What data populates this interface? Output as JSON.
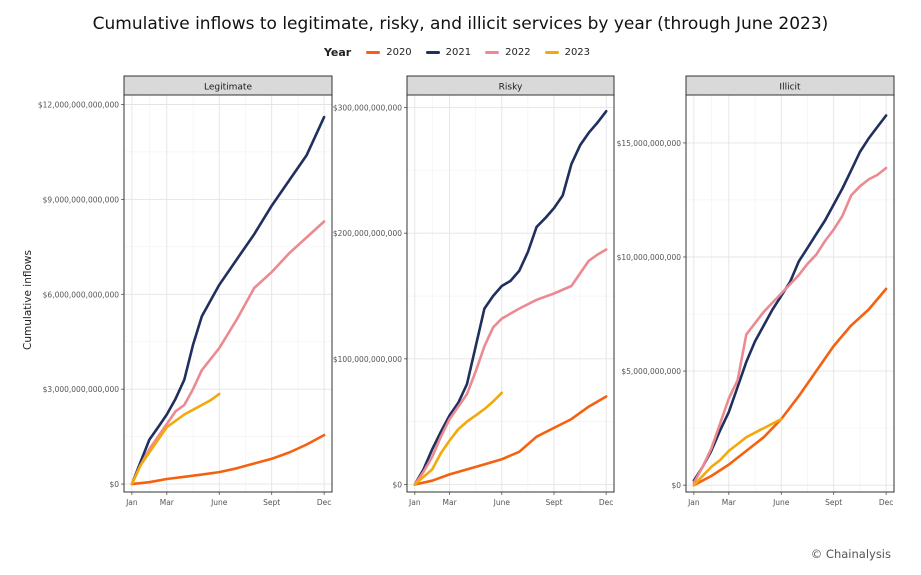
{
  "title": "Cumulative inflows to legitimate, risky, and illicit services by year (through June 2023)",
  "ylabel": "Cumulative inflows",
  "legend_title": "Year",
  "credit": "© Chainalysis",
  "colors": {
    "2020": "#f4620f",
    "2021": "#1f2f5e",
    "2022": "#ec8a92",
    "2023": "#f2a90b"
  },
  "chart_data": [
    {
      "type": "line",
      "panel": "Legitimate",
      "x_ticks": [
        "Jan",
        "Mar",
        "June",
        "Sept",
        "Dec"
      ],
      "x_tick_months": [
        0,
        2,
        5,
        8,
        11
      ],
      "y_ticks": [
        0,
        3000000000000,
        6000000000000,
        9000000000000,
        12000000000000
      ],
      "y_tick_labels": [
        "$0",
        "$3,000,000,000,000",
        "$6,000,000,000,000",
        "$9,000,000,000,000",
        "$12,000,000,000,000"
      ],
      "ylim": [
        -250000000000,
        12300000000000
      ],
      "xlim": [
        -0.45,
        11.45
      ],
      "series": [
        {
          "name": "2020",
          "x": [
            0,
            1,
            2,
            3,
            4,
            5,
            6,
            7,
            8,
            9,
            10,
            11
          ],
          "y": [
            0,
            60000000000,
            160000000000,
            230000000000,
            300000000000,
            380000000000,
            500000000000,
            650000000000,
            800000000000,
            1000000000000,
            1250000000000,
            1550000000000
          ]
        },
        {
          "name": "2021",
          "x": [
            0,
            0.5,
            1,
            1.5,
            2,
            2.5,
            3,
            3.5,
            4,
            4.5,
            5,
            6,
            7,
            8,
            9,
            10,
            11
          ],
          "y": [
            0,
            700000000000,
            1400000000000,
            1800000000000,
            2200000000000,
            2700000000000,
            3300000000000,
            4400000000000,
            5300000000000,
            5800000000000,
            6300000000000,
            7100000000000,
            7900000000000,
            8800000000000,
            9600000000000,
            10400000000000,
            11600000000000
          ]
        },
        {
          "name": "2022",
          "x": [
            0,
            0.5,
            1,
            1.5,
            2,
            2.5,
            3,
            3.5,
            4,
            5,
            6,
            7,
            8,
            9,
            10,
            11
          ],
          "y": [
            0,
            600000000000,
            1100000000000,
            1500000000000,
            1900000000000,
            2300000000000,
            2500000000000,
            3000000000000,
            3600000000000,
            4300000000000,
            5200000000000,
            6200000000000,
            6700000000000,
            7300000000000,
            7800000000000,
            8300000000000
          ]
        },
        {
          "name": "2023",
          "x": [
            0,
            0.5,
            1,
            1.5,
            2,
            2.5,
            3,
            3.5,
            4,
            4.5,
            5
          ],
          "y": [
            0,
            600000000000,
            1000000000000,
            1400000000000,
            1800000000000,
            2000000000000,
            2200000000000,
            2350000000000,
            2500000000000,
            2650000000000,
            2850000000000
          ]
        }
      ]
    },
    {
      "type": "line",
      "panel": "Risky",
      "x_ticks": [
        "Jan",
        "Mar",
        "June",
        "Sept",
        "Dec"
      ],
      "x_tick_months": [
        0,
        2,
        5,
        8,
        11
      ],
      "y_ticks": [
        0,
        100000000000,
        200000000000,
        300000000000
      ],
      "y_tick_labels": [
        "$0",
        "$100,000,000,000",
        "$200,000,000,000",
        "$300,000,000,000"
      ],
      "ylim": [
        -6000000000,
        310000000000
      ],
      "xlim": [
        -0.45,
        11.45
      ],
      "series": [
        {
          "name": "2020",
          "x": [
            0,
            1,
            2,
            3,
            4,
            5,
            6,
            7,
            8,
            9,
            10,
            11
          ],
          "y": [
            0,
            3000000000,
            8000000000,
            12000000000,
            16000000000,
            20000000000,
            26000000000,
            38000000000,
            45000000000,
            52000000000,
            62000000000,
            70000000000
          ]
        },
        {
          "name": "2021",
          "x": [
            0,
            0.5,
            1,
            1.5,
            2,
            2.5,
            3,
            3.5,
            4,
            4.5,
            5,
            5.5,
            6,
            6.5,
            7,
            7.5,
            8,
            8.5,
            9,
            9.5,
            10,
            10.5,
            11
          ],
          "y": [
            0,
            12000000000,
            28000000000,
            42000000000,
            55000000000,
            65000000000,
            80000000000,
            110000000000,
            140000000000,
            150000000000,
            158000000000,
            162000000000,
            170000000000,
            185000000000,
            205000000000,
            212000000000,
            220000000000,
            230000000000,
            255000000000,
            270000000000,
            280000000000,
            288000000000,
            297000000000
          ]
        },
        {
          "name": "2022",
          "x": [
            0,
            0.5,
            1,
            1.5,
            2,
            2.5,
            3,
            3.5,
            4,
            4.5,
            5,
            6,
            7,
            8,
            9,
            9.5,
            10,
            10.5,
            11
          ],
          "y": [
            0,
            10000000000,
            22000000000,
            38000000000,
            52000000000,
            62000000000,
            72000000000,
            90000000000,
            110000000000,
            125000000000,
            132000000000,
            140000000000,
            147000000000,
            152000000000,
            158000000000,
            168000000000,
            178000000000,
            183000000000,
            187000000000
          ]
        },
        {
          "name": "2023",
          "x": [
            0,
            0.5,
            1,
            1.5,
            2,
            2.5,
            3,
            3.5,
            4,
            4.5,
            5
          ],
          "y": [
            0,
            6000000000,
            12000000000,
            25000000000,
            35000000000,
            44000000000,
            50000000000,
            55000000000,
            60000000000,
            66000000000,
            73000000000
          ]
        }
      ]
    },
    {
      "type": "line",
      "panel": "Illicit",
      "x_ticks": [
        "Jan",
        "Mar",
        "June",
        "Sept",
        "Dec"
      ],
      "x_tick_months": [
        0,
        2,
        5,
        8,
        11
      ],
      "y_ticks": [
        0,
        5000000000,
        10000000000,
        15000000000
      ],
      "y_tick_labels": [
        "$0",
        "$5,000,000,000",
        "$10,000,000,000",
        "$15,000,000,000"
      ],
      "ylim": [
        -300000000,
        17100000000
      ],
      "xlim": [
        -0.45,
        11.45
      ],
      "series": [
        {
          "name": "2020",
          "x": [
            0,
            1,
            2,
            3,
            4,
            5,
            6,
            7,
            8,
            9,
            10,
            11
          ],
          "y": [
            0,
            400000000,
            900000000,
            1500000000,
            2100000000,
            2900000000,
            3900000000,
            5000000000,
            6100000000,
            7000000000,
            7700000000,
            8600000000
          ]
        },
        {
          "name": "2021",
          "x": [
            0,
            0.5,
            1,
            1.5,
            2,
            2.5,
            3,
            3.5,
            4,
            4.5,
            5,
            5.5,
            6,
            6.5,
            7,
            7.5,
            8,
            8.5,
            9,
            9.5,
            10,
            10.5,
            11
          ],
          "y": [
            200000000,
            800000000,
            1500000000,
            2400000000,
            3200000000,
            4300000000,
            5400000000,
            6300000000,
            7000000000,
            7700000000,
            8300000000,
            8900000000,
            9800000000,
            10400000000,
            11000000000,
            11600000000,
            12300000000,
            13000000000,
            13800000000,
            14600000000,
            15200000000,
            15700000000,
            16200000000
          ]
        },
        {
          "name": "2022",
          "x": [
            0,
            0.5,
            1,
            1.5,
            2,
            2.5,
            3,
            3.5,
            4,
            4.5,
            5,
            5.5,
            6,
            6.5,
            7,
            7.5,
            8,
            8.5,
            9,
            9.5,
            10,
            10.5,
            11
          ],
          "y": [
            100000000,
            800000000,
            1600000000,
            2700000000,
            3800000000,
            4600000000,
            6600000000,
            7100000000,
            7600000000,
            8000000000,
            8400000000,
            8800000000,
            9200000000,
            9700000000,
            10100000000,
            10700000000,
            11200000000,
            11800000000,
            12700000000,
            13100000000,
            13400000000,
            13600000000,
            13900000000
          ]
        },
        {
          "name": "2023",
          "x": [
            0,
            0.5,
            1,
            1.5,
            2,
            2.5,
            3,
            3.5,
            4,
            4.5,
            5
          ],
          "y": [
            0,
            400000000,
            800000000,
            1100000000,
            1500000000,
            1800000000,
            2100000000,
            2300000000,
            2500000000,
            2700000000,
            2900000000
          ]
        }
      ]
    }
  ]
}
